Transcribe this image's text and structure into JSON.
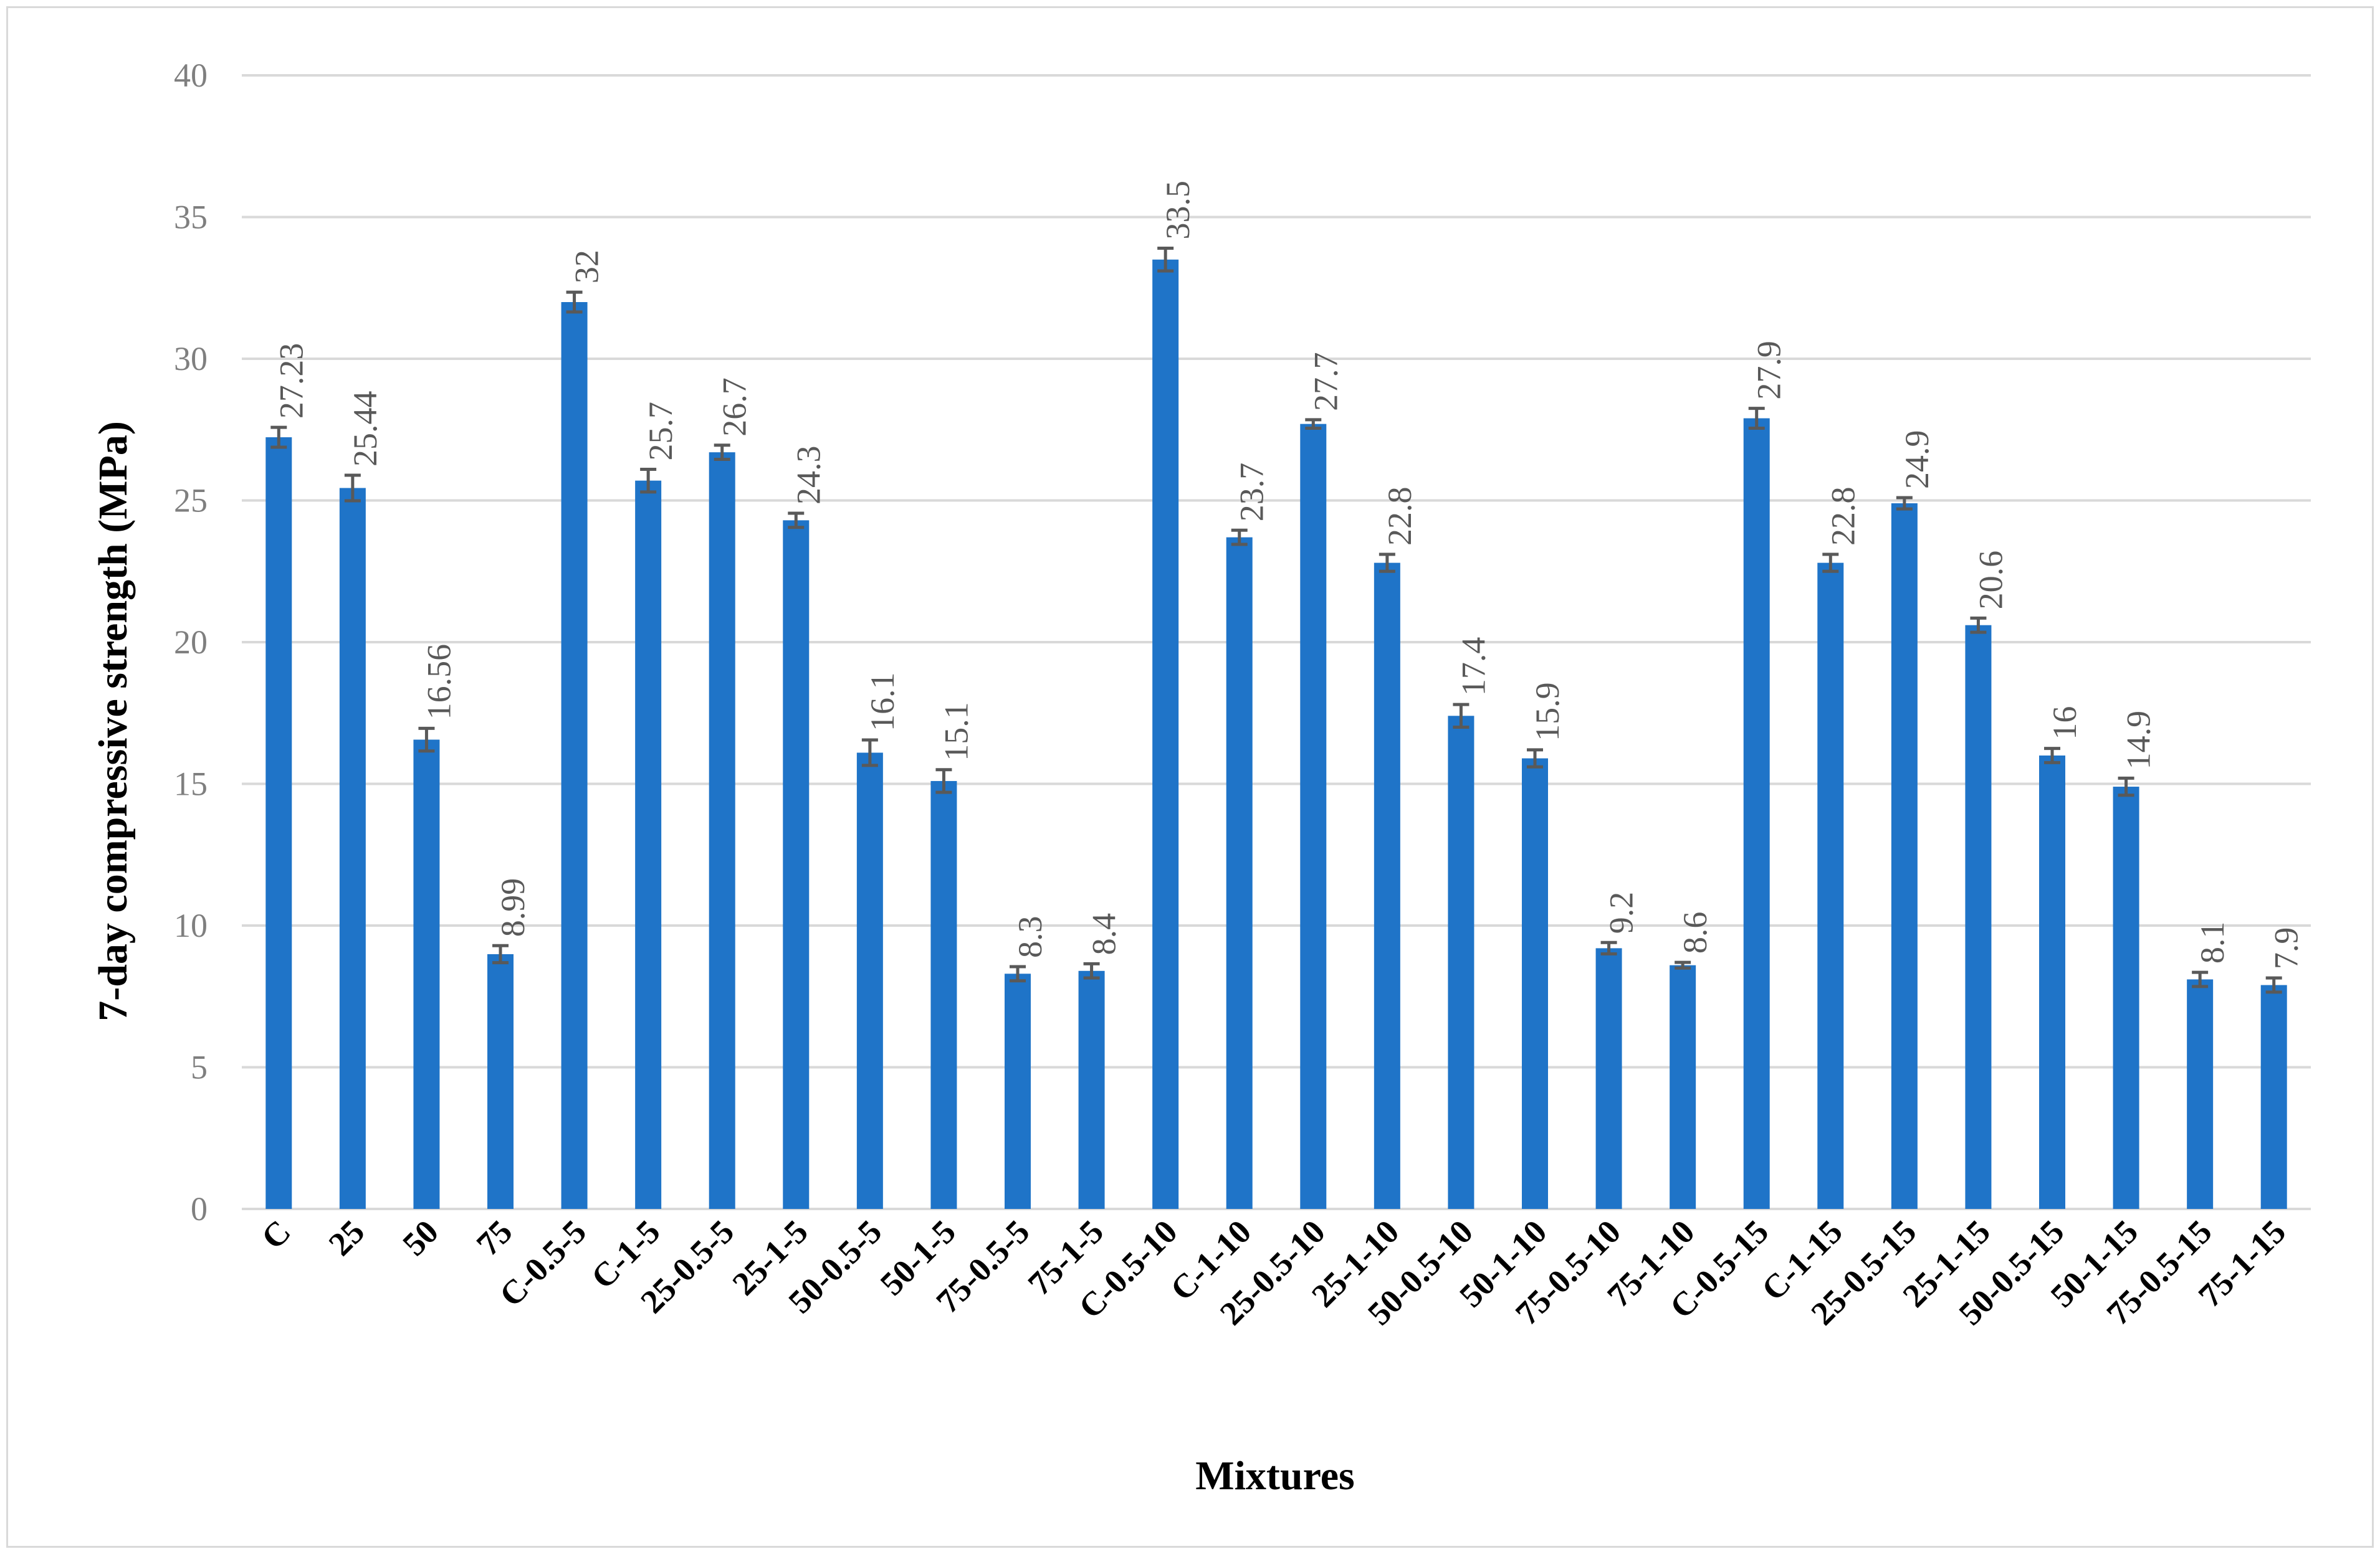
{
  "chart_data": {
    "type": "bar",
    "ylabel": "7-day compressive strength (MPa)",
    "xlabel": "Mixtures",
    "ylim": [
      0,
      40
    ],
    "y_ticks": [
      0,
      5,
      10,
      15,
      20,
      25,
      30,
      35,
      40
    ],
    "grid": true,
    "legend": "none",
    "bar_color": "#1f74c8",
    "error_bar_color": "#595959",
    "categories": [
      "C",
      "25",
      "50",
      "75",
      "C-0.5-5",
      "C-1-5",
      "25-0.5-5",
      "25-1-5",
      "50-0.5-5",
      "50-1-5",
      "75-0.5-5",
      "75-1-5",
      "C-0.5-10",
      "C-1-10",
      "25-0.5-10",
      "25-1-10",
      "50-0.5-10",
      "50-1-10",
      "75-0.5-10",
      "75-1-10",
      "C-0.5-15",
      "C-1-15",
      "25-0.5-15",
      "25-1-15",
      "50-0.5-15",
      "50-1-15",
      "75-0.5-15",
      "75-1-15"
    ],
    "values": [
      27.23,
      25.44,
      16.56,
      8.99,
      32,
      25.7,
      26.7,
      24.3,
      16.1,
      15.1,
      8.3,
      8.4,
      33.5,
      23.7,
      27.7,
      22.8,
      17.4,
      15.9,
      9.2,
      8.6,
      27.9,
      22.8,
      24.9,
      20.6,
      16,
      14.9,
      8.1,
      7.9
    ],
    "data_labels": [
      "27.23",
      "25.44",
      "16.56",
      "8.99",
      "32",
      "25.7",
      "26.7",
      "24.3",
      "16.1",
      "15.1",
      "8.3",
      "8.4",
      "33.5",
      "23.7",
      "27.7",
      "22.8",
      "17.4",
      "15.9",
      "9.2",
      "8.6",
      "27.9",
      "22.8",
      "24.9",
      "20.6",
      "16",
      "14.9",
      "8.1",
      "7.9"
    ],
    "errors": [
      0.35,
      0.45,
      0.4,
      0.3,
      0.35,
      0.4,
      0.25,
      0.25,
      0.45,
      0.4,
      0.25,
      0.25,
      0.4,
      0.25,
      0.15,
      0.3,
      0.4,
      0.3,
      0.2,
      0.1,
      0.35,
      0.3,
      0.2,
      0.25,
      0.25,
      0.3,
      0.25,
      0.25
    ]
  }
}
